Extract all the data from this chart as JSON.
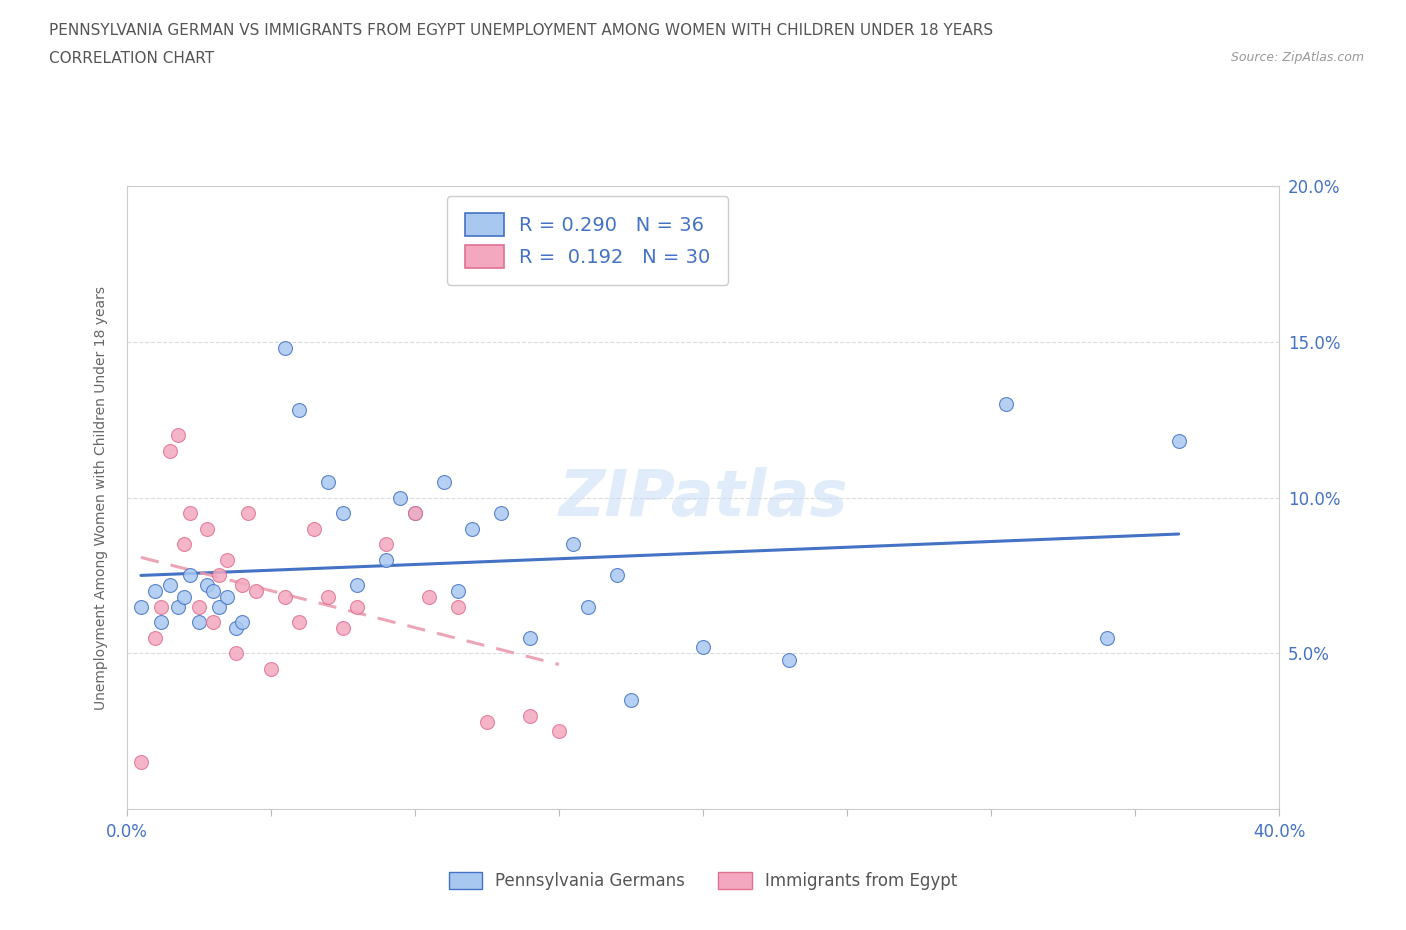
{
  "title_line1": "PENNSYLVANIA GERMAN VS IMMIGRANTS FROM EGYPT UNEMPLOYMENT AMONG WOMEN WITH CHILDREN UNDER 18 YEARS",
  "title_line2": "CORRELATION CHART",
  "source": "Source: ZipAtlas.com",
  "ylabel": "Unemployment Among Women with Children Under 18 years",
  "watermark": "ZIPatlas",
  "xlim": [
    0.0,
    0.4
  ],
  "ylim": [
    0.0,
    0.2
  ],
  "xticks": [
    0.0,
    0.05,
    0.1,
    0.15,
    0.2,
    0.25,
    0.3,
    0.35,
    0.4
  ],
  "yticks": [
    0.0,
    0.05,
    0.1,
    0.15,
    0.2
  ],
  "blue_fill": "#A8C8F0",
  "blue_edge": "#4472C4",
  "pink_fill": "#F4A8C0",
  "pink_edge": "#E07090",
  "blue_line": "#4472C4",
  "pink_line": "#E896A8",
  "R_blue": 0.29,
  "N_blue": 36,
  "R_pink": 0.192,
  "N_pink": 30,
  "blue_x": [
    0.005,
    0.01,
    0.012,
    0.015,
    0.018,
    0.02,
    0.022,
    0.025,
    0.028,
    0.03,
    0.032,
    0.035,
    0.038,
    0.04,
    0.055,
    0.06,
    0.07,
    0.075,
    0.08,
    0.09,
    0.095,
    0.1,
    0.11,
    0.115,
    0.12,
    0.13,
    0.14,
    0.155,
    0.16,
    0.17,
    0.175,
    0.2,
    0.23,
    0.305,
    0.34,
    0.365
  ],
  "blue_y": [
    0.065,
    0.07,
    0.06,
    0.072,
    0.065,
    0.068,
    0.075,
    0.06,
    0.072,
    0.07,
    0.065,
    0.068,
    0.058,
    0.06,
    0.148,
    0.128,
    0.105,
    0.095,
    0.072,
    0.08,
    0.1,
    0.095,
    0.105,
    0.07,
    0.09,
    0.095,
    0.055,
    0.085,
    0.065,
    0.075,
    0.035,
    0.052,
    0.048,
    0.13,
    0.055,
    0.118
  ],
  "pink_x": [
    0.005,
    0.01,
    0.012,
    0.015,
    0.018,
    0.02,
    0.022,
    0.025,
    0.028,
    0.03,
    0.032,
    0.035,
    0.038,
    0.04,
    0.042,
    0.045,
    0.05,
    0.055,
    0.06,
    0.065,
    0.07,
    0.075,
    0.08,
    0.09,
    0.1,
    0.105,
    0.115,
    0.125,
    0.14,
    0.15
  ],
  "pink_y": [
    0.015,
    0.055,
    0.065,
    0.115,
    0.12,
    0.085,
    0.095,
    0.065,
    0.09,
    0.06,
    0.075,
    0.08,
    0.05,
    0.072,
    0.095,
    0.07,
    0.045,
    0.068,
    0.06,
    0.09,
    0.068,
    0.058,
    0.065,
    0.085,
    0.095,
    0.068,
    0.065,
    0.028,
    0.03,
    0.025
  ],
  "tick_color": "#4472C4",
  "grid_color": "#cccccc",
  "title_color": "#555555",
  "source_color": "#999999",
  "ylabel_color": "#666666",
  "legend_text_color": "#4472C4",
  "bottom_legend_color": "#555555"
}
